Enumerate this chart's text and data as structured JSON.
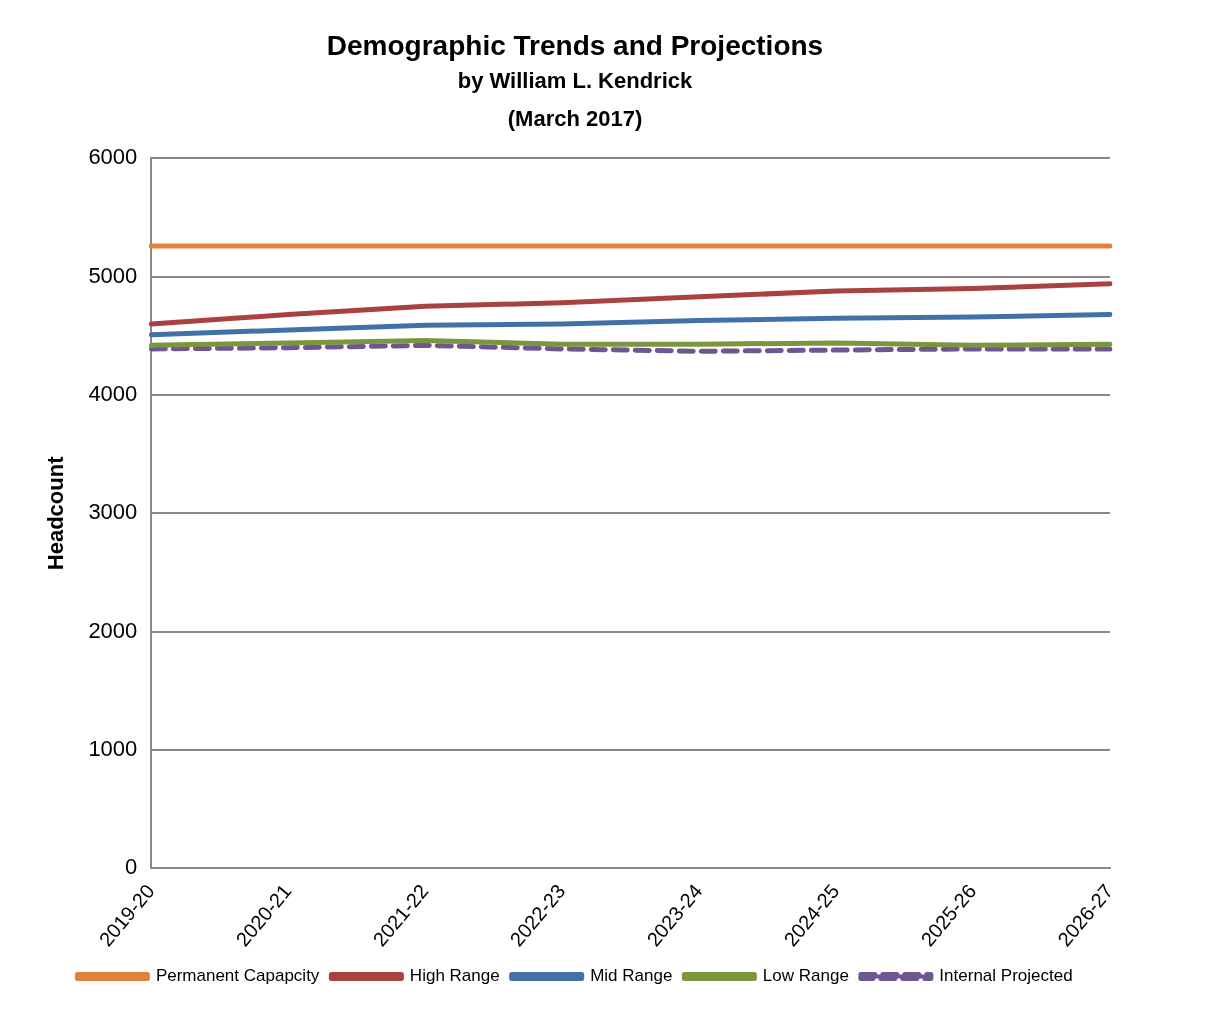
{
  "chart_data": {
    "type": "line",
    "title": "Demographic Trends and Projections",
    "subtitle": "by William L. Kendrick\n(March 2017)",
    "ylabel": "Headcount",
    "categories": [
      "2019-20",
      "2020-21",
      "2021-22",
      "2022-23",
      "2023-24",
      "2024-25",
      "2025-26",
      "2026-27"
    ],
    "series": [
      {
        "name": "Permanent Capapcity",
        "color": "#e0823d",
        "values": [
          5260,
          5260,
          5260,
          5260,
          5260,
          5260,
          5260,
          5260
        ]
      },
      {
        "name": "High Range",
        "color": "#a84140",
        "values": [
          4600,
          4680,
          4750,
          4780,
          4830,
          4880,
          4900,
          4940
        ]
      },
      {
        "name": "Mid Range",
        "color": "#4271a9",
        "values": [
          4510,
          4550,
          4590,
          4600,
          4630,
          4650,
          4660,
          4680
        ]
      },
      {
        "name": "Low Range",
        "color": "#7a973e",
        "values": [
          4420,
          4440,
          4460,
          4430,
          4430,
          4440,
          4420,
          4430
        ]
      },
      {
        "name": "Internal Projected",
        "color": "#6f5592",
        "values": [
          4390,
          4400,
          4420,
          4390,
          4370,
          4380,
          4390,
          4390
        ],
        "line_style": "dashed"
      }
    ],
    "ylim": [
      0,
      6000
    ],
    "yticks": [
      0,
      1000,
      2000,
      3000,
      4000,
      5000,
      6000
    ],
    "grid": "y",
    "legend": "bottom",
    "marker": "none"
  }
}
